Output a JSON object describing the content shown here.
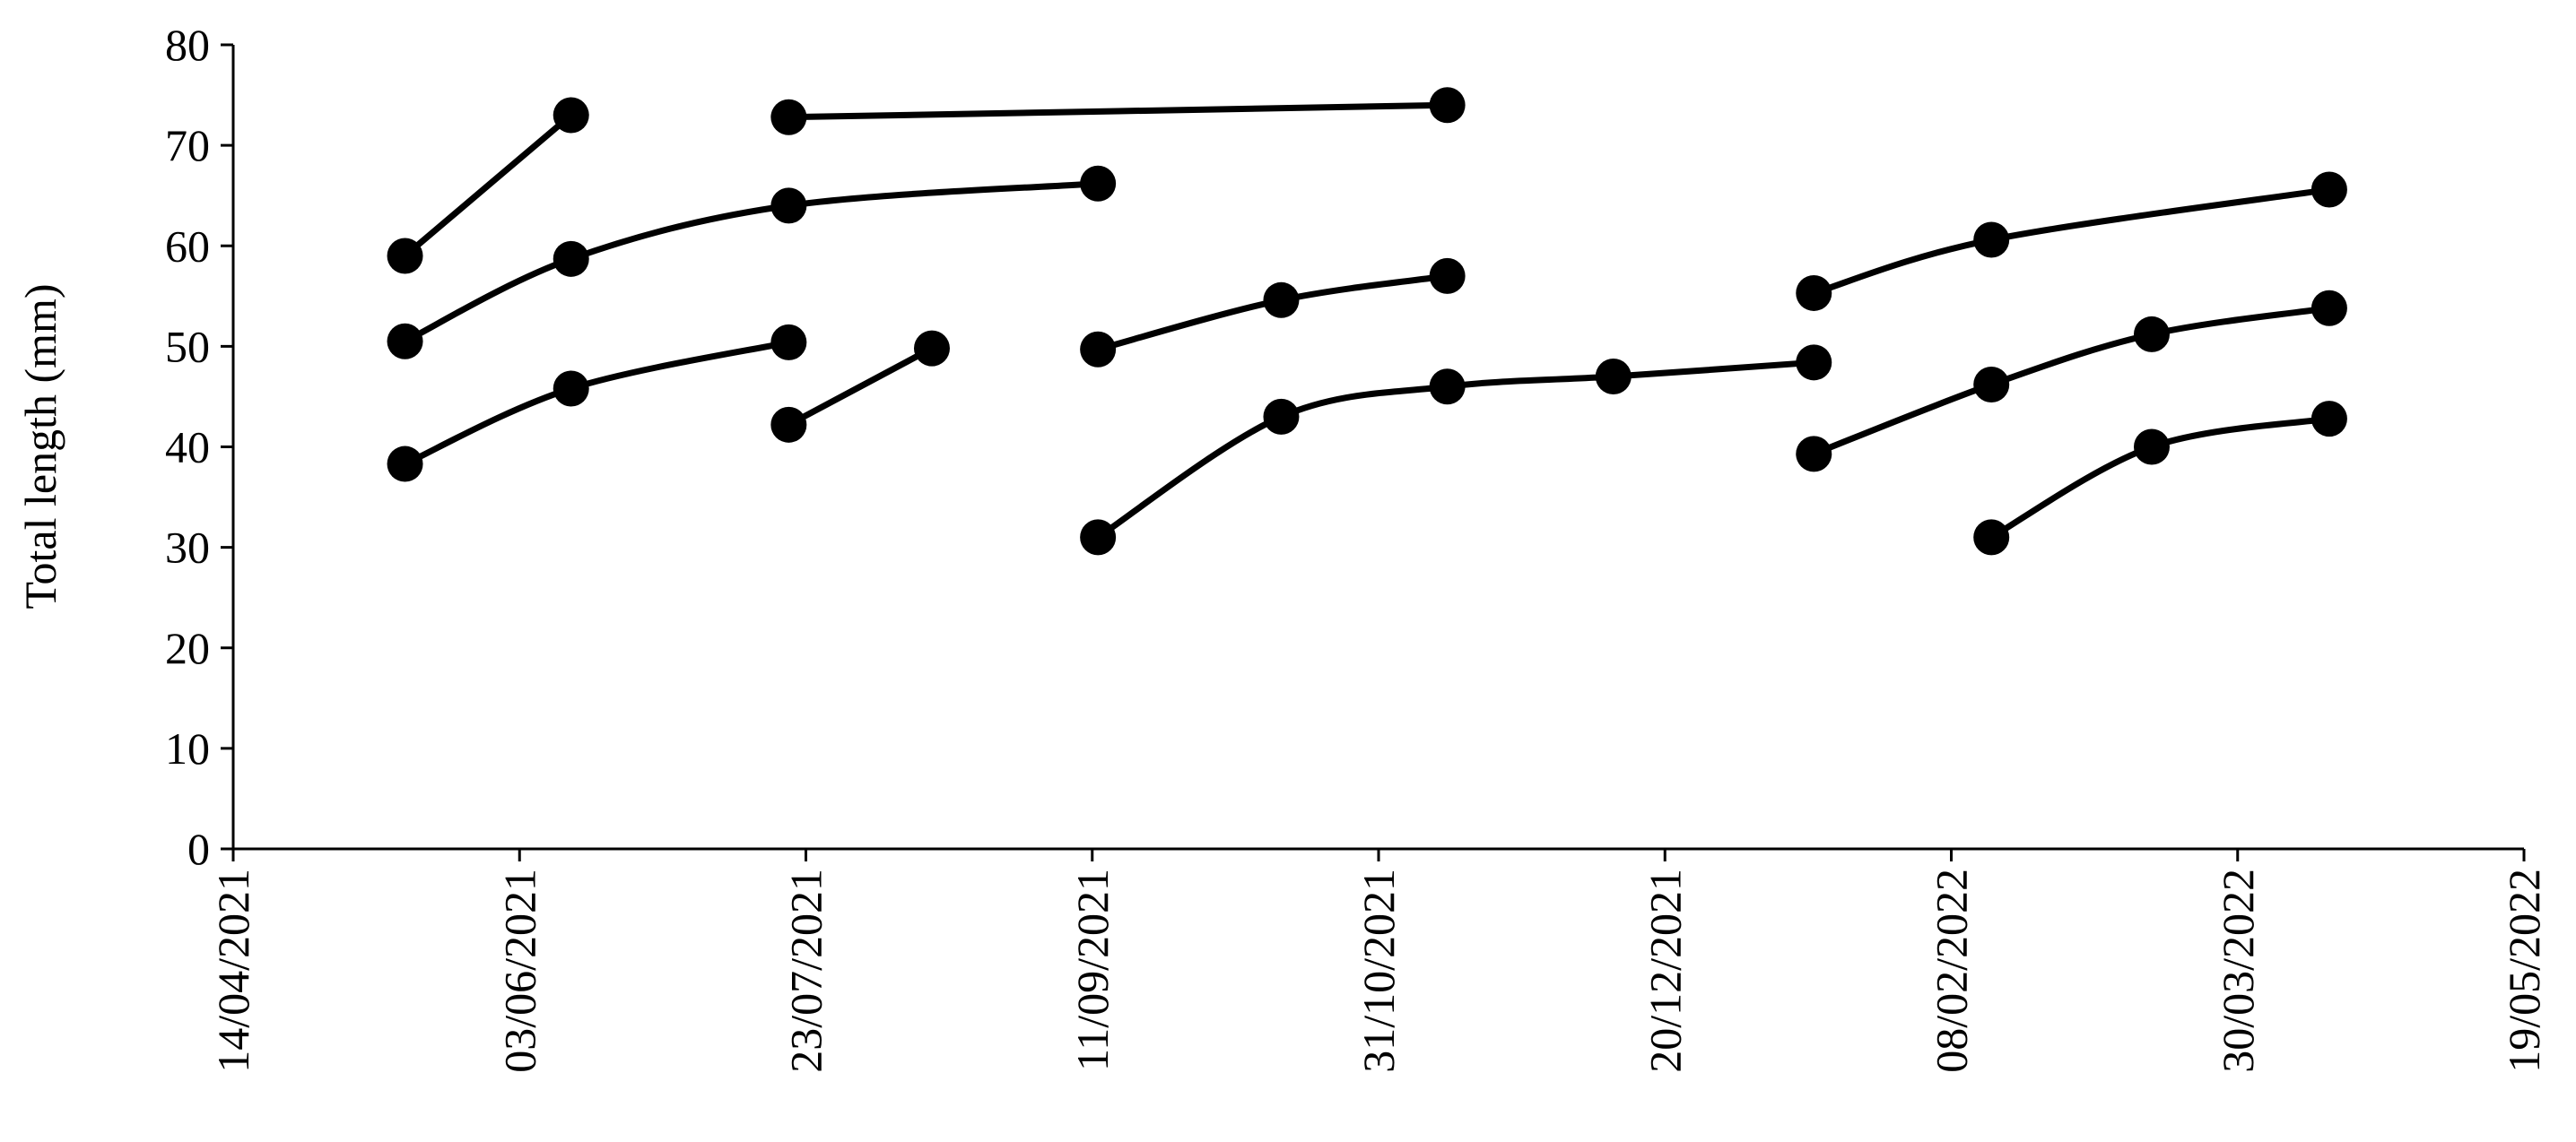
{
  "chart_data": {
    "type": "line",
    "y_label": "Total length (mm)",
    "xlim": [
      "2021-04-14",
      "2022-05-19"
    ],
    "xticks": [
      {
        "value": "2021-04-14",
        "label": "14/04/2021"
      },
      {
        "value": "2021-06-03",
        "label": "03/06/2021"
      },
      {
        "value": "2021-07-23",
        "label": "23/07/2021"
      },
      {
        "value": "2021-09-11",
        "label": "11/09/2021"
      },
      {
        "value": "2021-10-31",
        "label": "31/10/2021"
      },
      {
        "value": "2021-12-20",
        "label": "20/12/2021"
      },
      {
        "value": "2022-02-08",
        "label": "08/02/2022"
      },
      {
        "value": "2022-03-30",
        "label": "30/03/2022"
      },
      {
        "value": "2022-05-19",
        "label": "19/05/2022"
      }
    ],
    "ylim": [
      0,
      80
    ],
    "yticks": [
      0,
      10,
      20,
      30,
      40,
      50,
      60,
      70,
      80
    ],
    "series": [
      {
        "color": "#000000",
        "x": [
          "2021-05-14",
          "2021-06-12"
        ],
        "values": [
          59,
          73
        ]
      },
      {
        "color": "#000000",
        "x": [
          "2021-05-14",
          "2021-06-12",
          "2021-07-20",
          "2021-09-12"
        ],
        "values": [
          50.5,
          58.7,
          64,
          66.2
        ]
      },
      {
        "color": "#000000",
        "x": [
          "2021-05-14",
          "2021-06-12",
          "2021-07-20"
        ],
        "values": [
          38.3,
          45.8,
          50.4
        ]
      },
      {
        "color": "#000000",
        "x": [
          "2021-07-20",
          "2021-11-12"
        ],
        "values": [
          72.8,
          74
        ]
      },
      {
        "color": "#000000",
        "x": [
          "2021-07-20",
          "2021-08-14"
        ],
        "values": [
          42.2,
          49.8
        ]
      },
      {
        "color": "#000000",
        "x": [
          "2021-09-12",
          "2021-10-14",
          "2021-11-12"
        ],
        "values": [
          49.7,
          54.6,
          57
        ]
      },
      {
        "color": "#000000",
        "x": [
          "2021-09-12",
          "2021-10-14",
          "2021-11-12",
          "2021-12-11",
          "2022-01-15"
        ],
        "values": [
          31,
          43,
          46,
          47,
          48.4
        ]
      },
      {
        "color": "#000000",
        "x": [
          "2022-01-15",
          "2022-02-15",
          "2022-04-15"
        ],
        "values": [
          55.3,
          60.6,
          65.6
        ]
      },
      {
        "color": "#000000",
        "x": [
          "2022-01-15",
          "2022-02-15",
          "2022-03-15",
          "2022-04-15"
        ],
        "values": [
          39.3,
          46.2,
          51.2,
          53.8
        ]
      },
      {
        "color": "#000000",
        "x": [
          "2022-02-15",
          "2022-03-15",
          "2022-04-15"
        ],
        "values": [
          31,
          40,
          42.8
        ]
      }
    ]
  }
}
